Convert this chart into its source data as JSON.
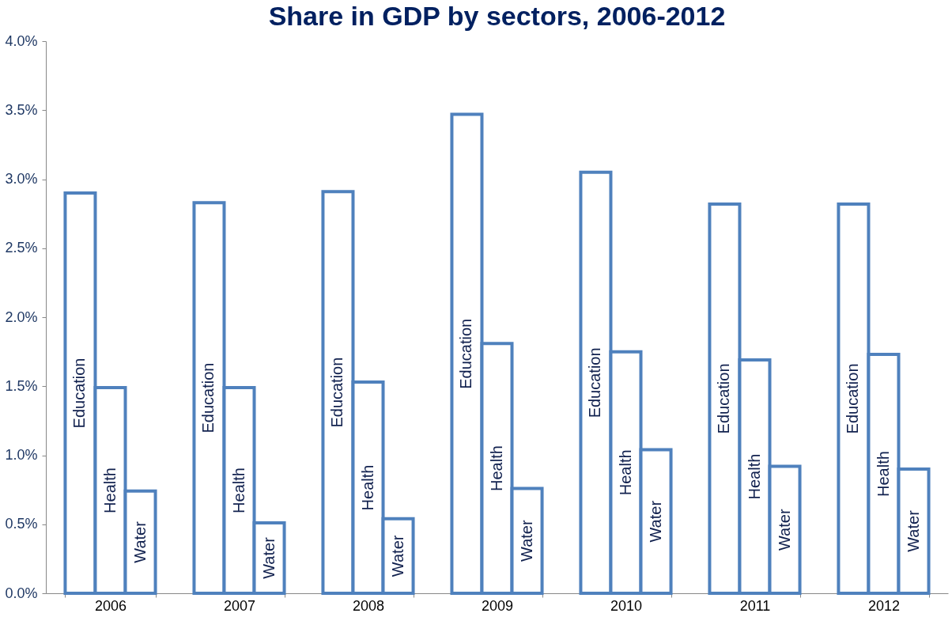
{
  "chart_data": {
    "type": "bar",
    "title": "Share in GDP by sectors, 2006-2012",
    "categories": [
      "2006",
      "2007",
      "2008",
      "2009",
      "2010",
      "2011",
      "2012"
    ],
    "series": [
      {
        "name": "Education",
        "color": "#4f81bd",
        "values": [
          2.9,
          2.83,
          2.91,
          3.47,
          3.05,
          2.82,
          2.82
        ]
      },
      {
        "name": "Health",
        "color": "#4f81bd",
        "values": [
          1.49,
          1.49,
          1.53,
          1.81,
          1.75,
          1.69,
          1.73
        ]
      },
      {
        "name": "Water",
        "color": "#4f81bd",
        "values": [
          0.74,
          0.51,
          0.54,
          0.76,
          1.04,
          0.92,
          0.9
        ]
      }
    ],
    "ylim": [
      0,
      4
    ],
    "yticks": [
      {
        "value": 0,
        "label": "0.0%"
      },
      {
        "value": 0.5,
        "label": "0.5%"
      },
      {
        "value": 1,
        "label": "1.0%"
      },
      {
        "value": 1.5,
        "label": "1.5%"
      },
      {
        "value": 2,
        "label": "2.0%"
      },
      {
        "value": 2.5,
        "label": "2.5%"
      },
      {
        "value": 3,
        "label": "3.0%"
      },
      {
        "value": 3.5,
        "label": "3.5%"
      },
      {
        "value": 4,
        "label": "4.0%"
      }
    ],
    "grid": false,
    "legend": false
  }
}
